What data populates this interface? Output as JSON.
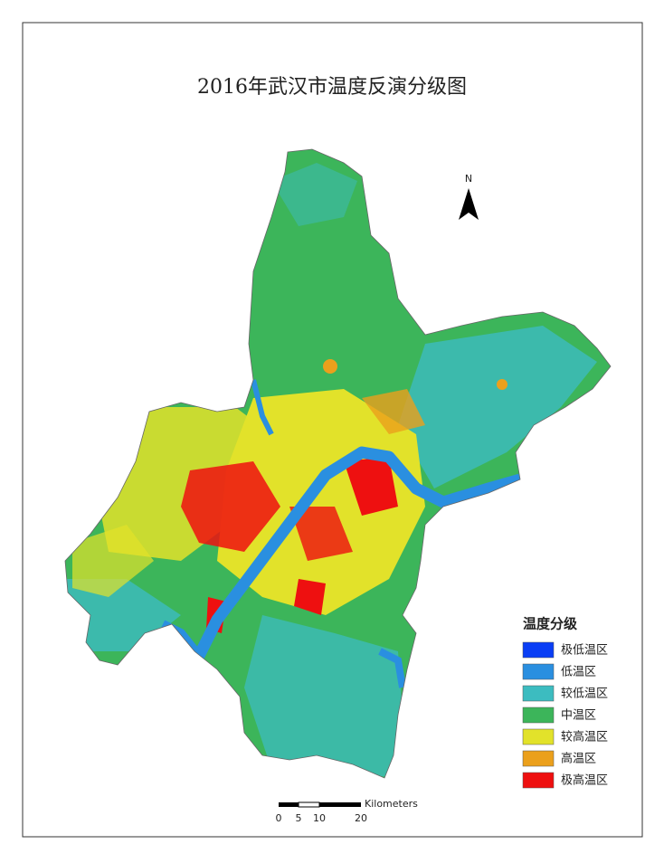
{
  "map": {
    "title": "2016年武汉市温度反演分级图",
    "north_label": "N",
    "legend": {
      "title": "温度分级",
      "items": [
        {
          "label": "极低温区",
          "color": "#0a3ef5"
        },
        {
          "label": "低温区",
          "color": "#2a8fe0"
        },
        {
          "label": "较低温区",
          "color": "#3cbcc0"
        },
        {
          "label": "中温区",
          "color": "#3cb55a"
        },
        {
          "label": "较高温区",
          "color": "#e2e22a"
        },
        {
          "label": "高温区",
          "color": "#eba01c"
        },
        {
          "label": "极高温区",
          "color": "#ee1010"
        }
      ]
    },
    "scale_bar": {
      "unit": "Kilometers",
      "labels": [
        0,
        5,
        10,
        20
      ]
    }
  }
}
